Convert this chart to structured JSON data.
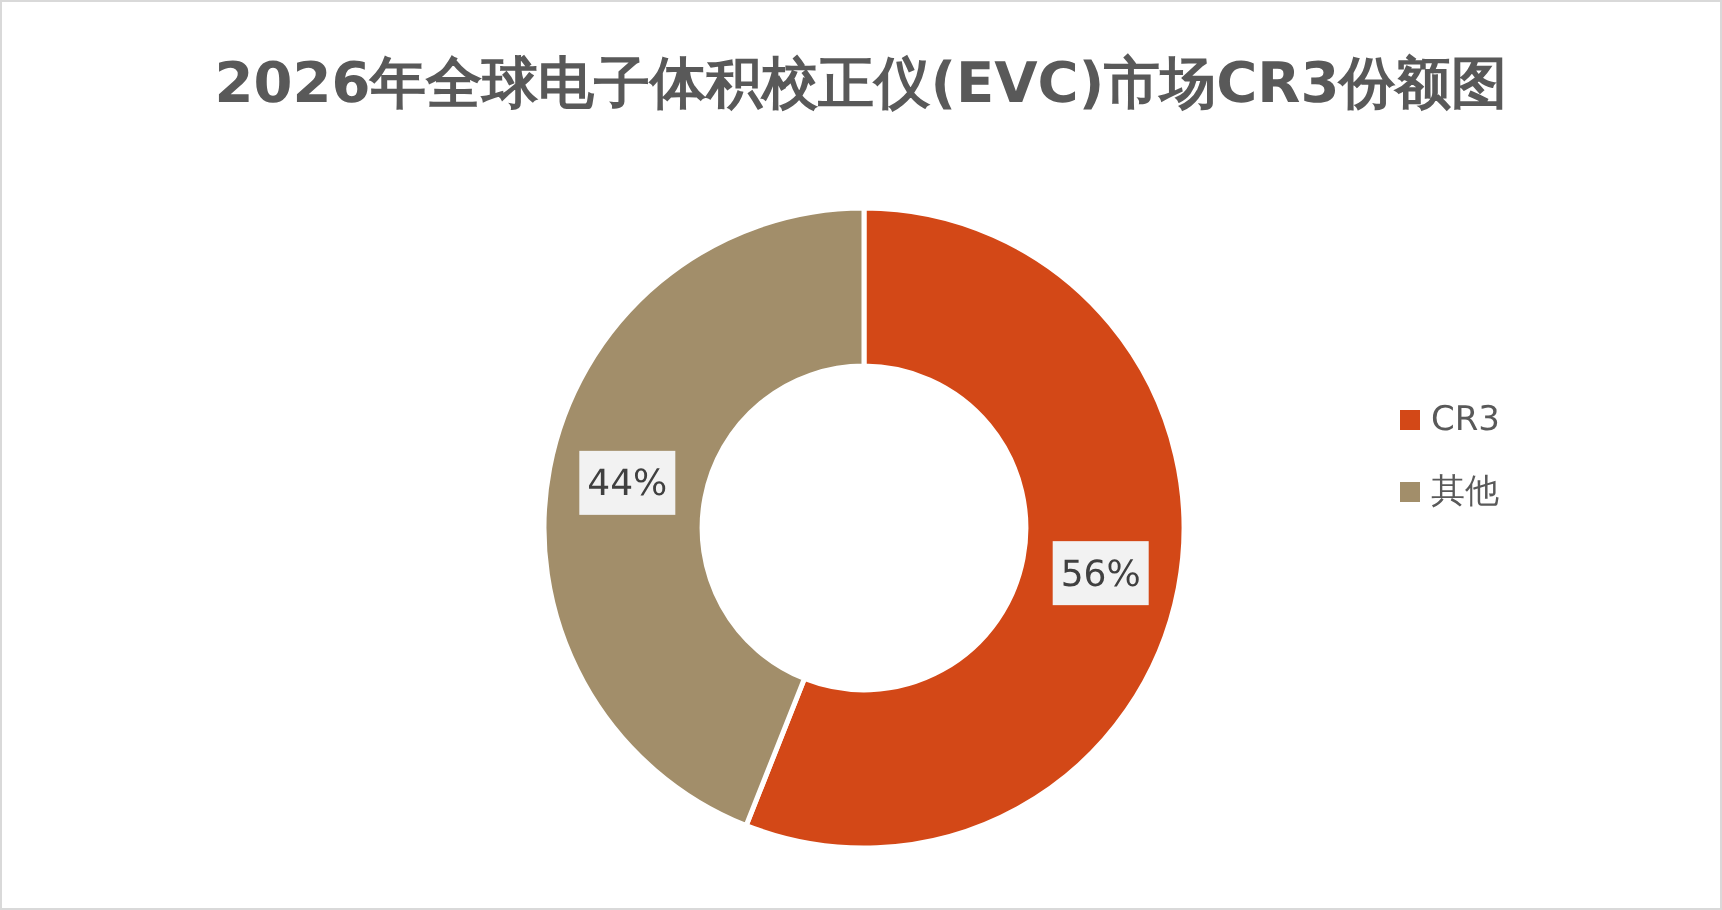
{
  "chart_data": {
    "type": "donut",
    "title": "2026年全球电子体积校正仪(EVC)市场CR3份额图",
    "categories": [
      "CR3",
      "其他"
    ],
    "values": [
      56,
      44
    ],
    "colors": [
      "#d34817",
      "#a28e6a"
    ],
    "value_labels": [
      "56%",
      "44%"
    ],
    "legend": "right"
  }
}
